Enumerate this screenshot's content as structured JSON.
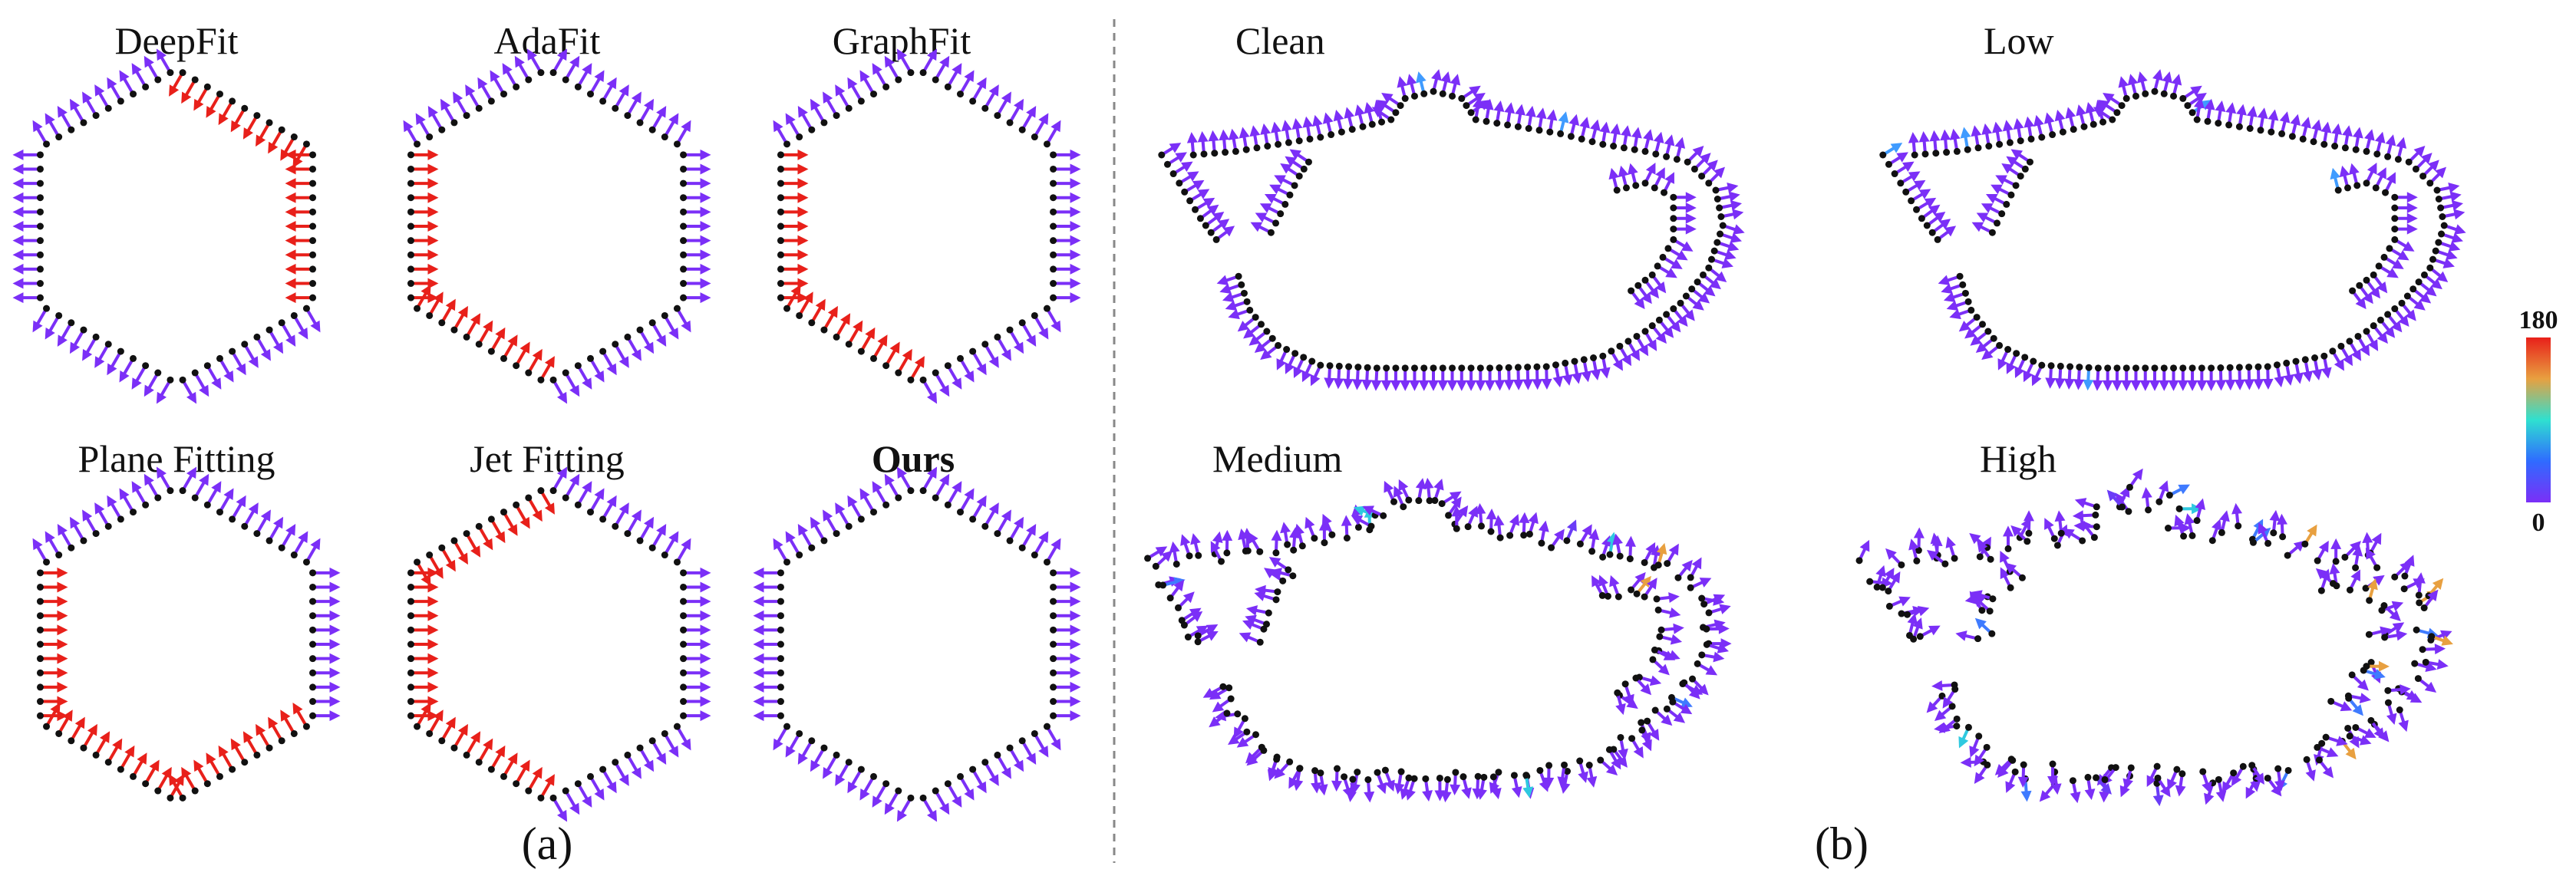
{
  "panel_a": {
    "caption": "(a)",
    "methods": [
      {
        "name": "DeepFit",
        "bold": false,
        "error_edges": [
          0,
          1
        ]
      },
      {
        "name": "AdaFit",
        "bold": false,
        "error_edges": [
          3,
          4
        ]
      },
      {
        "name": "GraphFit",
        "bold": false,
        "error_edges": [
          3,
          4
        ]
      },
      {
        "name": "Plane Fitting",
        "bold": false,
        "error_edges": [
          2,
          3,
          4
        ]
      },
      {
        "name": "Jet Fitting",
        "bold": false,
        "error_edges": [
          3,
          4,
          5
        ]
      },
      {
        "name": "Ours",
        "bold": true,
        "error_edges": []
      }
    ]
  },
  "panel_b": {
    "caption": "(b)",
    "noise_levels": [
      "Clean",
      "Low",
      "Medium",
      "High"
    ]
  },
  "colorbar": {
    "max_label": "180",
    "min_label": "0"
  },
  "colors": {
    "good": "#7b2ff7",
    "bad": "#e8201a",
    "point": "#111111",
    "divider": "#888888"
  }
}
